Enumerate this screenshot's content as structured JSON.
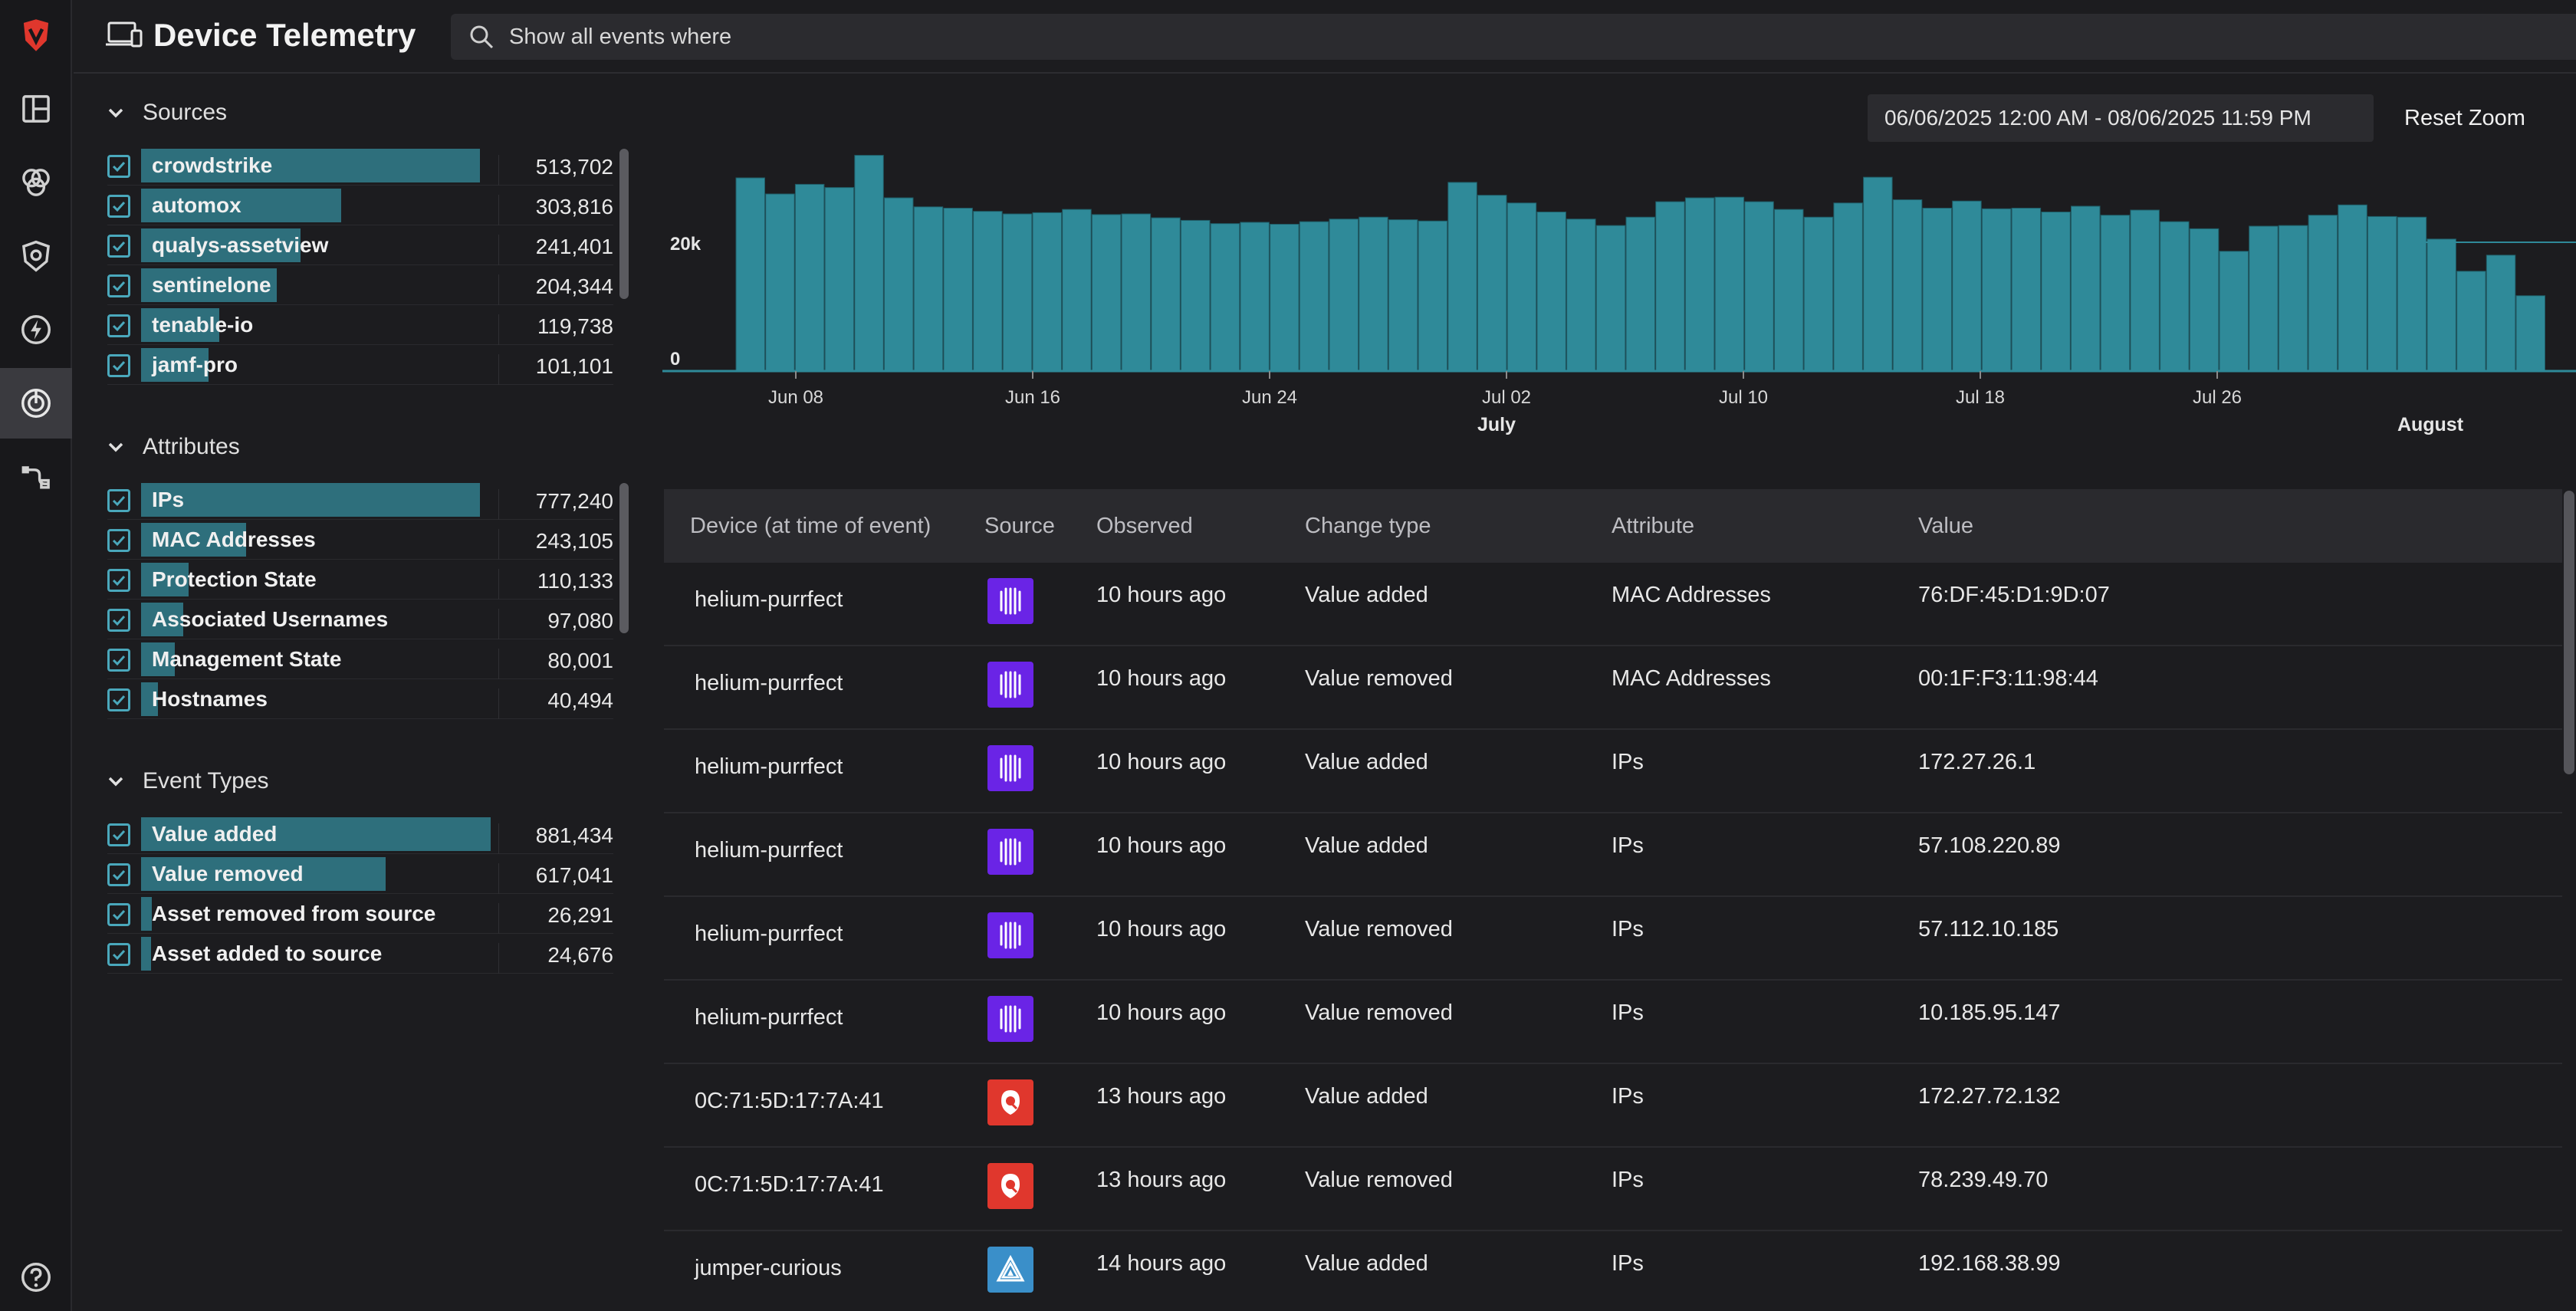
{
  "header": {
    "title": "Device Telemetry",
    "search_placeholder": "Show all events where"
  },
  "rail": {
    "icons": [
      "brand-logo-icon",
      "dashboard-icon",
      "circles-icon",
      "shield-icon",
      "bolt-icon",
      "radar-icon",
      "connector-icon",
      "help-icon"
    ],
    "active": "radar-icon"
  },
  "facets": {
    "sources": {
      "label": "Sources",
      "items": [
        {
          "name": "crowdstrike",
          "count": "513,702",
          "fraction": 1.0
        },
        {
          "name": "automox",
          "count": "303,816",
          "fraction": 0.59
        },
        {
          "name": "qualys-assetview",
          "count": "241,401",
          "fraction": 0.47
        },
        {
          "name": "sentinelone",
          "count": "204,344",
          "fraction": 0.4
        },
        {
          "name": "tenable-io",
          "count": "119,738",
          "fraction": 0.23
        },
        {
          "name": "jamf-pro",
          "count": "101,101",
          "fraction": 0.2
        }
      ]
    },
    "attributes": {
      "label": "Attributes",
      "items": [
        {
          "name": "IPs",
          "count": "777,240",
          "fraction": 1.0
        },
        {
          "name": "MAC Addresses",
          "count": "243,105",
          "fraction": 0.31
        },
        {
          "name": "Protection State",
          "count": "110,133",
          "fraction": 0.14
        },
        {
          "name": "Associated Usernames",
          "count": "97,080",
          "fraction": 0.125
        },
        {
          "name": "Management State",
          "count": "80,001",
          "fraction": 0.1
        },
        {
          "name": "Hostnames",
          "count": "40,494",
          "fraction": 0.05
        }
      ]
    },
    "event_types": {
      "label": "Event Types",
      "items": [
        {
          "name": "Value added",
          "count": "881,434",
          "fraction": 1.0
        },
        {
          "name": "Value removed",
          "count": "617,041",
          "fraction": 0.7
        },
        {
          "name": "Asset removed from source",
          "count": "26,291",
          "fraction": 0.03
        },
        {
          "name": "Asset added to source",
          "count": "24,676",
          "fraction": 0.028
        }
      ]
    }
  },
  "timeline": {
    "date_range": "06/06/2025 12:00 AM - 08/06/2025 11:59 PM",
    "reset_zoom_label": "Reset Zoom"
  },
  "chart_data": {
    "type": "bar",
    "y_ticks": [
      "0",
      "20k"
    ],
    "x_tick_labels": [
      "Jun 08",
      "Jun 16",
      "Jun 24",
      "Jul 02",
      "Jul 10",
      "Jul 18",
      "Jul 26"
    ],
    "x_month_labels": [
      "July",
      "August"
    ],
    "values": [
      30000,
      27500,
      29000,
      28500,
      33500,
      26900,
      25500,
      25300,
      24800,
      24400,
      24600,
      25100,
      24300,
      24400,
      23800,
      23400,
      22900,
      23100,
      22800,
      23200,
      23600,
      23900,
      23500,
      23300,
      29300,
      27300,
      26100,
      24700,
      23600,
      22600,
      23900,
      26300,
      26900,
      27000,
      26300,
      25100,
      23900,
      26100,
      30100,
      26600,
      25300,
      26400,
      25200,
      25300,
      24700,
      25600,
      24200,
      25000,
      23200,
      22100,
      18600,
      22500,
      22600,
      24200,
      25800,
      24000,
      23900,
      20500,
      15500,
      18000,
      11700
    ],
    "bar_color": "#2f8a99",
    "grid": false
  },
  "table": {
    "columns": [
      "Device (at time of event)",
      "Source",
      "Observed",
      "Change type",
      "Attribute",
      "Value"
    ],
    "rows": [
      {
        "device": "helium-purrfect",
        "source_icon": "crowdstrike-logo-icon",
        "source_color": "#6a24e6",
        "observed": "10 hours ago",
        "change": "Value added",
        "attribute": "MAC Addresses",
        "value": "76:DF:45:D1:9D:07"
      },
      {
        "device": "helium-purrfect",
        "source_icon": "crowdstrike-logo-icon",
        "source_color": "#6a24e6",
        "observed": "10 hours ago",
        "change": "Value removed",
        "attribute": "MAC Addresses",
        "value": "00:1F:F3:11:98:44"
      },
      {
        "device": "helium-purrfect",
        "source_icon": "crowdstrike-logo-icon",
        "source_color": "#6a24e6",
        "observed": "10 hours ago",
        "change": "Value added",
        "attribute": "IPs",
        "value": "172.27.26.1"
      },
      {
        "device": "helium-purrfect",
        "source_icon": "crowdstrike-logo-icon",
        "source_color": "#6a24e6",
        "observed": "10 hours ago",
        "change": "Value added",
        "attribute": "IPs",
        "value": "57.108.220.89"
      },
      {
        "device": "helium-purrfect",
        "source_icon": "crowdstrike-logo-icon",
        "source_color": "#6a24e6",
        "observed": "10 hours ago",
        "change": "Value removed",
        "attribute": "IPs",
        "value": "57.112.10.185"
      },
      {
        "device": "helium-purrfect",
        "source_icon": "crowdstrike-logo-icon",
        "source_color": "#6a24e6",
        "observed": "10 hours ago",
        "change": "Value removed",
        "attribute": "IPs",
        "value": "10.185.95.147"
      },
      {
        "device": "0C:71:5D:17:7A:41",
        "source_icon": "qualys-logo-icon",
        "source_color": "#e0372d",
        "observed": "13 hours ago",
        "change": "Value added",
        "attribute": "IPs",
        "value": "172.27.72.132"
      },
      {
        "device": "0C:71:5D:17:7A:41",
        "source_icon": "qualys-logo-icon",
        "source_color": "#e0372d",
        "observed": "13 hours ago",
        "change": "Value removed",
        "attribute": "IPs",
        "value": "78.239.49.70"
      },
      {
        "device": "jumper-curious",
        "source_icon": "triangle-logo-icon",
        "source_color": "#3a8fc9",
        "observed": "14 hours ago",
        "change": "Value added",
        "attribute": "IPs",
        "value": "192.168.38.99"
      }
    ]
  }
}
